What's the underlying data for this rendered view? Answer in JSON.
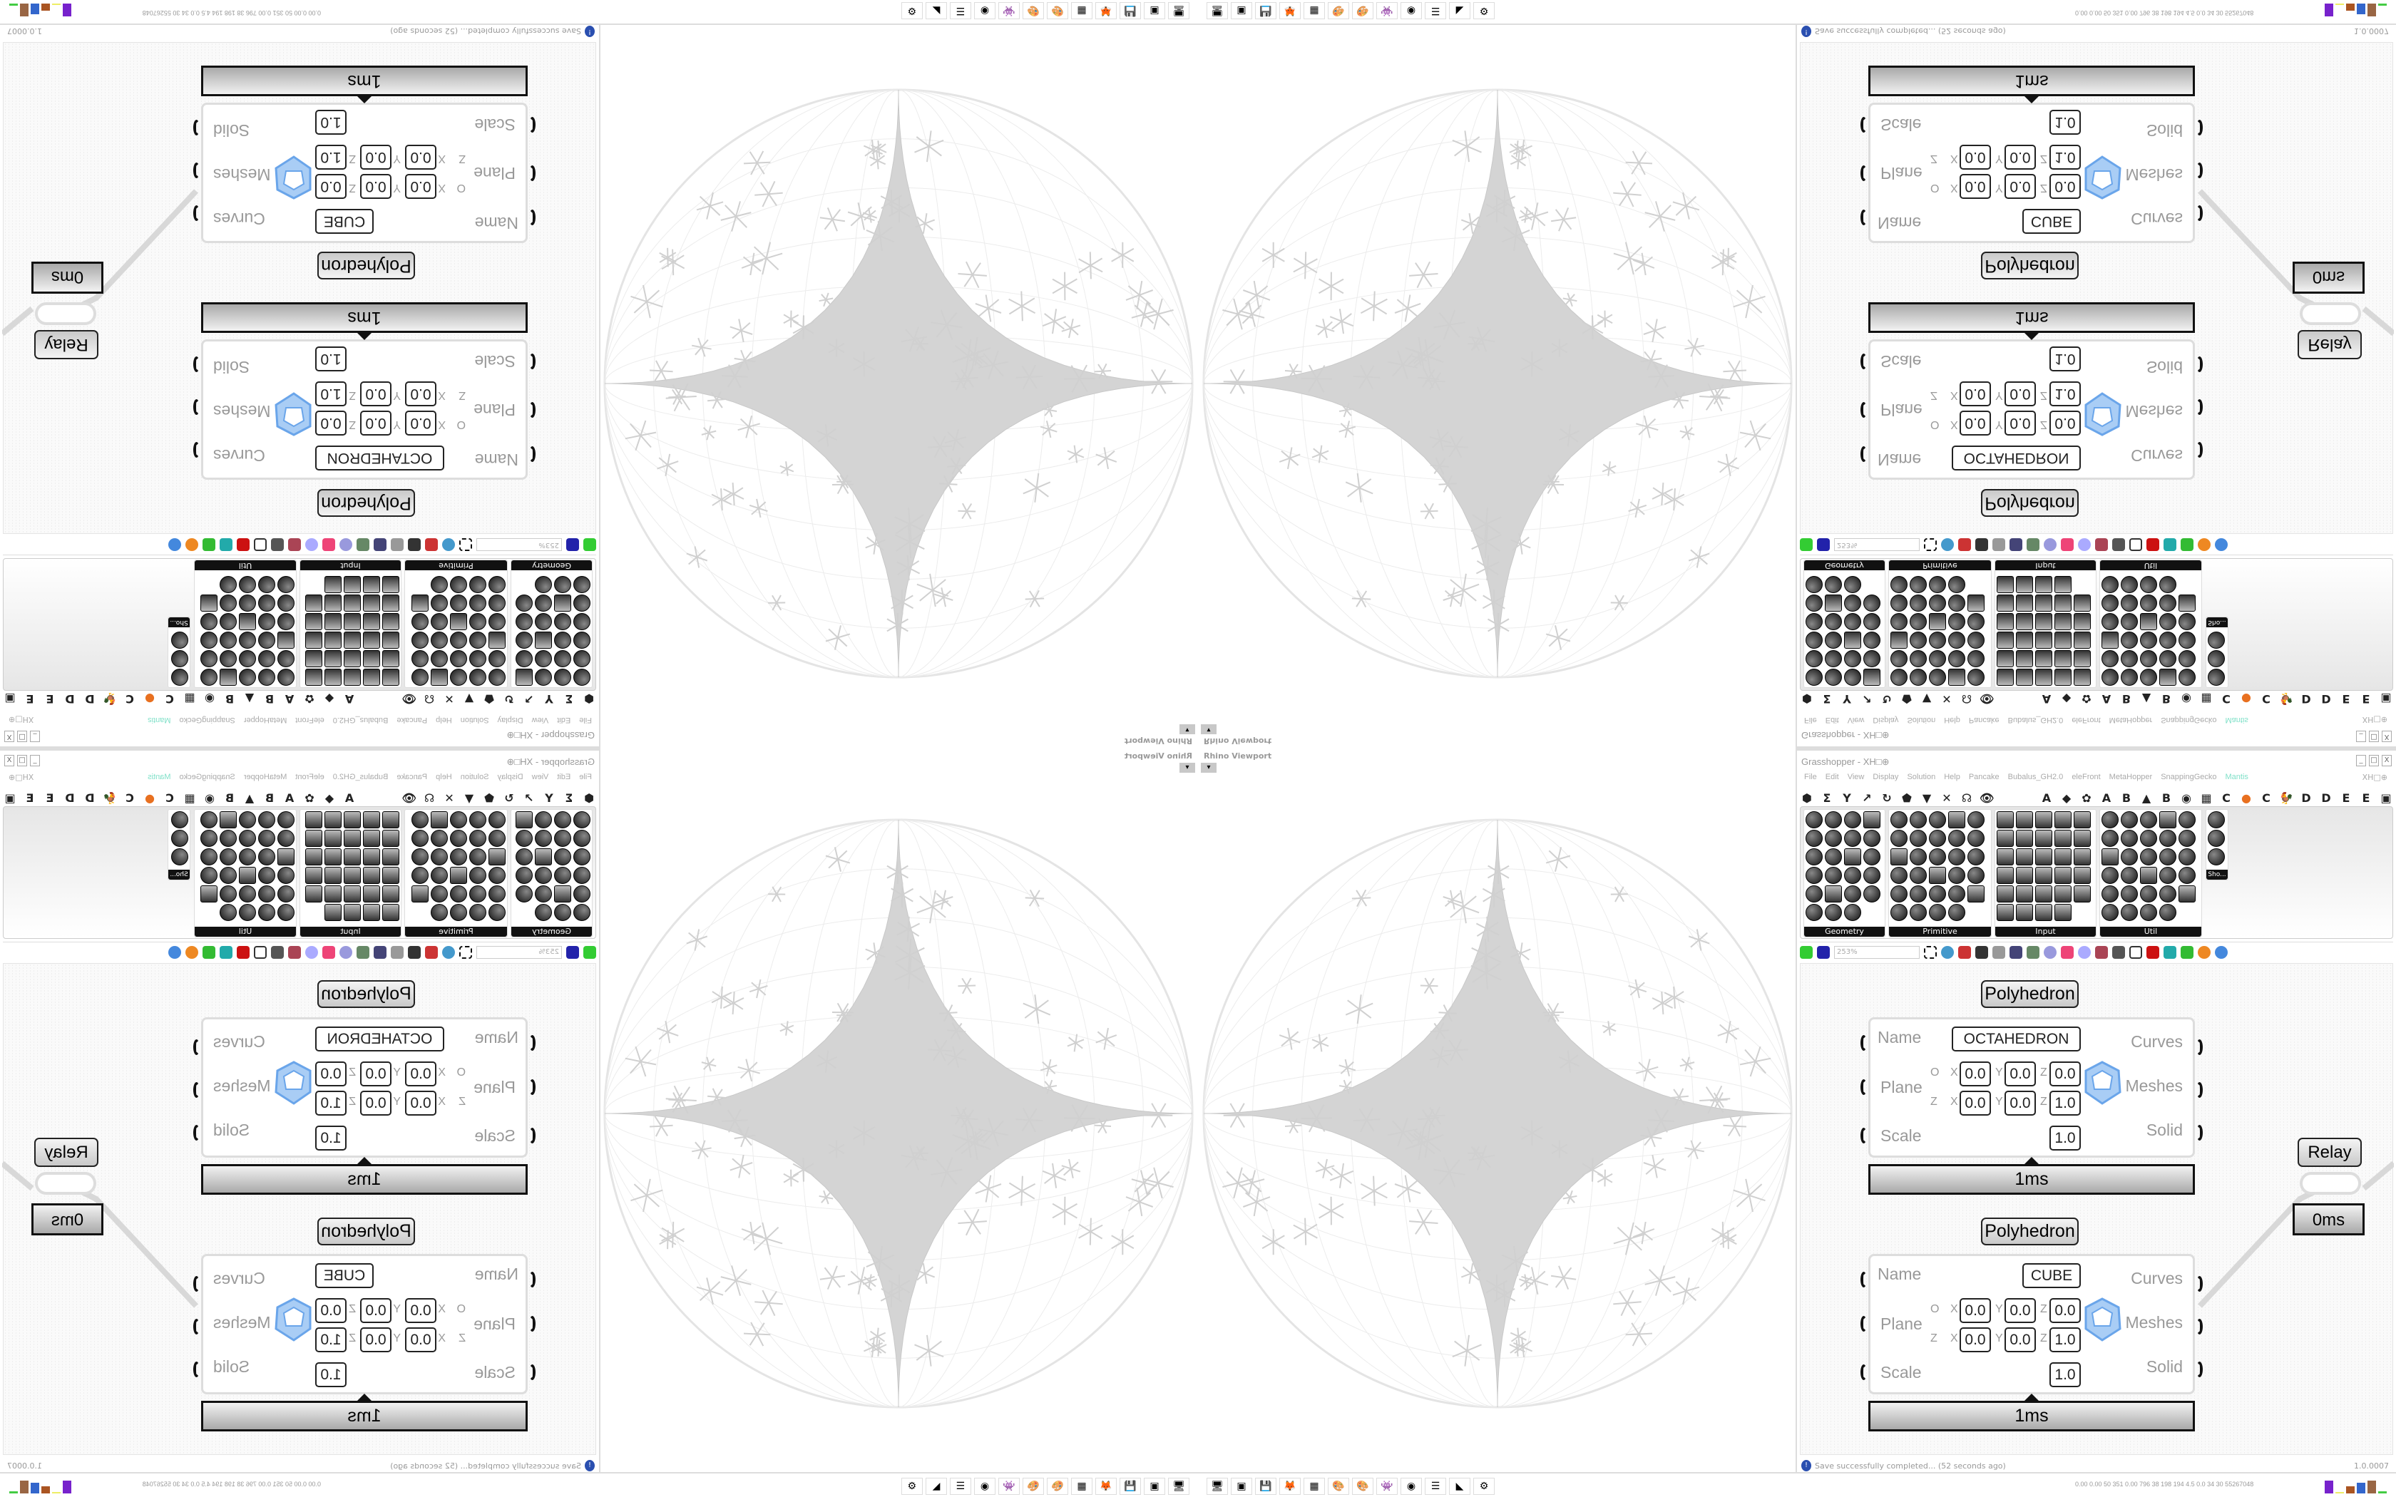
{
  "viewport": {
    "title": "Rhino Viewport",
    "dropdown": "▾"
  },
  "grasshopper": {
    "title": "Grasshopper - XH□⊕",
    "menu": [
      "File",
      "Edit",
      "View",
      "Display",
      "Solution",
      "Help",
      "Pancake",
      "Bubalus_GH2.0",
      "eleFront",
      "MetaHopper",
      "SnappingGecko",
      "Mantis"
    ],
    "menu_right": "XH□⊕",
    "active_menu_color": "#7fe0c8",
    "tabs_left": [
      "⬢",
      "Σ",
      "Y",
      "↗",
      "↻",
      "⬟",
      "▼",
      "✕",
      "☊",
      "👁"
    ],
    "tabs_right": [
      "A",
      "◆",
      "✿",
      "A",
      "B",
      "▲",
      "B",
      "◉",
      "▦",
      "C",
      "●",
      "C",
      "🐓",
      "D",
      "D",
      "E",
      "E",
      "▣"
    ],
    "panels": [
      "Geometry",
      "Primitive",
      "Input",
      "Util",
      "Sho..."
    ],
    "zoom_level": "253%",
    "components": [
      {
        "label": "Polyhedron",
        "name_value": "OCTAHEDRON",
        "inputs": [
          "Name",
          "Plane",
          "Scale"
        ],
        "outputs": [
          "Curves",
          "Meshes",
          "Solid"
        ],
        "origin_axis": "O",
        "normal_axis": "Z",
        "axes": [
          "X",
          "Y",
          "Z"
        ],
        "origin": [
          "0.0",
          "0.0",
          "0.0"
        ],
        "normal": [
          "0.0",
          "0.0",
          "1.0"
        ],
        "scale": "1.0",
        "time": "1ms"
      },
      {
        "label": "Polyhedron",
        "name_value": "CUBE",
        "inputs": [
          "Name",
          "Plane",
          "Scale"
        ],
        "outputs": [
          "Curves",
          "Meshes",
          "Solid"
        ],
        "origin_axis": "O",
        "normal_axis": "Z",
        "axes": [
          "X",
          "Y",
          "Z"
        ],
        "origin": [
          "0.0",
          "0.0",
          "0.0"
        ],
        "normal": [
          "0.0",
          "0.0",
          "1.0"
        ],
        "scale": "1.0",
        "time": "1ms"
      }
    ],
    "relay": {
      "label": "Relay",
      "time": "0ms"
    },
    "status": {
      "icon": "info-icon",
      "message": "Save successfully completed... (52 seconds ago)",
      "version": "1.0.0007"
    }
  },
  "taskbar": {
    "apps": [
      "🖥",
      "▣",
      "💾",
      "🦊",
      "▦",
      "🎨",
      "🎨",
      "👾",
      "◉",
      "☰",
      "◣",
      "⚙"
    ],
    "stats": "0.00 0.00 50 351 0.00 796 38 198 194 4.5 0.0 34 30 55267048"
  }
}
